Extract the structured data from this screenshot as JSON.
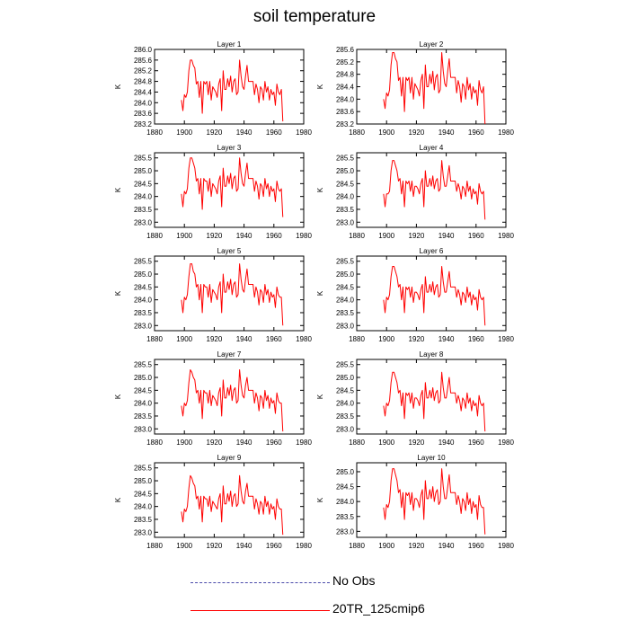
{
  "title": "soil temperature",
  "colors": {
    "model": "#ff0000",
    "obs": "#4a4aaa",
    "axis": "#000000"
  },
  "legend": [
    {
      "label": "No Obs",
      "style": "dashed",
      "color": "#4a4aaa"
    },
    {
      "label": "20TR_125cmip6",
      "style": "solid",
      "color": "#ff0000"
    }
  ],
  "chart_data": {
    "type": "line",
    "ylabel": "K",
    "xlim": [
      1880,
      1980
    ],
    "xticks": [
      1880,
      1900,
      1920,
      1940,
      1960,
      1980
    ],
    "years": [
      1898,
      1899,
      1900,
      1901,
      1902,
      1903,
      1904,
      1905,
      1906,
      1907,
      1908,
      1909,
      1910,
      1911,
      1912,
      1913,
      1914,
      1915,
      1916,
      1917,
      1918,
      1919,
      1920,
      1921,
      1922,
      1923,
      1924,
      1925,
      1926,
      1927,
      1928,
      1929,
      1930,
      1931,
      1932,
      1933,
      1934,
      1935,
      1936,
      1937,
      1938,
      1939,
      1940,
      1941,
      1942,
      1943,
      1944,
      1945,
      1946,
      1947,
      1948,
      1949,
      1950,
      1951,
      1952,
      1953,
      1954,
      1955,
      1956,
      1957,
      1958,
      1959,
      1960,
      1961,
      1962,
      1963,
      1964,
      1965,
      1966
    ],
    "panels": [
      {
        "title": "Layer 1",
        "ylim": [
          283.2,
          286.0
        ],
        "yticks": [
          "283.2",
          "283.6",
          "284.0",
          "284.4",
          "284.8",
          "285.2",
          "285.6",
          "286.0"
        ],
        "values": [
          284.1,
          283.7,
          284.3,
          284.2,
          284.4,
          285.2,
          285.6,
          285.6,
          285.4,
          285.3,
          284.7,
          284.8,
          284.2,
          284.8,
          283.6,
          284.8,
          284.7,
          284.8,
          284.3,
          284.8,
          284.1,
          284.6,
          284.5,
          284.4,
          284.2,
          284.7,
          284.9,
          283.7,
          285.2,
          284.5,
          284.5,
          284.9,
          284.6,
          285.0,
          284.4,
          284.8,
          284.9,
          284.3,
          284.4,
          285.6,
          285.0,
          284.6,
          284.5,
          285.0,
          285.4,
          284.8,
          284.8,
          284.8,
          284.8,
          284.3,
          284.7,
          284.5,
          284.0,
          284.6,
          284.5,
          284.1,
          284.8,
          284.4,
          284.6,
          284.1,
          284.5,
          284.3,
          284.4,
          283.9,
          284.7,
          284.4,
          284.3,
          284.5,
          283.3
        ]
      },
      {
        "title": "Layer 2",
        "ylim": [
          283.2,
          285.6
        ],
        "yticks": [
          "283.2",
          "283.6",
          "284.0",
          "284.4",
          "284.8",
          "285.2",
          "285.6"
        ],
        "values": [
          284.0,
          283.7,
          284.2,
          284.1,
          284.3,
          285.1,
          285.5,
          285.5,
          285.3,
          285.2,
          284.6,
          284.7,
          284.1,
          284.7,
          283.6,
          284.7,
          284.6,
          284.7,
          284.2,
          284.7,
          284.0,
          284.5,
          284.4,
          284.3,
          284.1,
          284.6,
          284.8,
          283.7,
          285.1,
          284.4,
          284.4,
          284.8,
          284.5,
          284.9,
          284.3,
          284.7,
          284.8,
          284.2,
          284.3,
          285.5,
          284.9,
          284.5,
          284.4,
          284.9,
          285.3,
          284.7,
          284.7,
          284.7,
          284.7,
          284.2,
          284.6,
          284.4,
          283.9,
          284.5,
          284.4,
          284.0,
          284.7,
          284.3,
          284.5,
          284.0,
          284.4,
          284.2,
          284.3,
          283.8,
          284.6,
          284.3,
          284.2,
          284.4,
          283.2
        ]
      },
      {
        "title": "Layer 3",
        "ylim": [
          282.8,
          285.7
        ],
        "yticks": [
          "283.0",
          "283.5",
          "284.0",
          "284.5",
          "285.0",
          "285.5"
        ],
        "values": [
          284.1,
          283.6,
          284.2,
          284.1,
          284.3,
          285.1,
          285.5,
          285.5,
          285.3,
          285.1,
          284.6,
          284.7,
          284.1,
          284.7,
          283.5,
          284.7,
          284.6,
          284.6,
          284.2,
          284.7,
          284.0,
          284.5,
          284.4,
          284.3,
          284.1,
          284.6,
          284.8,
          283.6,
          285.1,
          284.4,
          284.4,
          284.8,
          284.5,
          284.9,
          284.3,
          284.7,
          284.8,
          284.2,
          284.3,
          285.5,
          284.9,
          284.5,
          284.4,
          284.9,
          285.3,
          284.7,
          284.7,
          284.7,
          284.7,
          284.2,
          284.6,
          284.4,
          283.9,
          284.5,
          284.4,
          284.0,
          284.7,
          284.3,
          284.5,
          284.0,
          284.4,
          284.2,
          284.3,
          283.8,
          284.6,
          284.3,
          284.2,
          284.3,
          283.2
        ]
      },
      {
        "title": "Layer 4",
        "ylim": [
          282.8,
          285.7
        ],
        "yticks": [
          "283.0",
          "283.5",
          "284.0",
          "284.5",
          "285.0",
          "285.5"
        ],
        "values": [
          284.1,
          283.6,
          284.1,
          284.1,
          284.2,
          285.0,
          285.4,
          285.4,
          285.2,
          285.0,
          284.6,
          284.7,
          284.1,
          284.6,
          283.6,
          284.6,
          284.5,
          284.6,
          284.2,
          284.6,
          284.0,
          284.4,
          284.4,
          284.3,
          284.1,
          284.5,
          284.7,
          283.6,
          285.0,
          284.4,
          284.4,
          284.7,
          284.4,
          284.8,
          284.3,
          284.6,
          284.7,
          284.2,
          284.3,
          285.4,
          284.8,
          284.4,
          284.4,
          284.8,
          285.2,
          284.6,
          284.6,
          284.6,
          284.6,
          284.2,
          284.5,
          284.3,
          283.9,
          284.4,
          284.3,
          284.0,
          284.6,
          284.2,
          284.4,
          283.9,
          284.3,
          284.1,
          284.2,
          283.7,
          284.5,
          284.2,
          284.1,
          284.2,
          283.1
        ]
      },
      {
        "title": "Layer 5",
        "ylim": [
          282.8,
          285.7
        ],
        "yticks": [
          "283.0",
          "283.5",
          "284.0",
          "284.5",
          "285.0",
          "285.5"
        ],
        "values": [
          284.0,
          283.5,
          284.1,
          284.0,
          284.2,
          284.9,
          285.4,
          285.4,
          285.1,
          285.0,
          284.5,
          284.6,
          284.0,
          284.6,
          283.5,
          284.6,
          284.5,
          284.5,
          284.1,
          284.6,
          283.9,
          284.4,
          284.3,
          284.2,
          284.0,
          284.5,
          284.7,
          283.5,
          285.0,
          284.3,
          284.3,
          284.7,
          284.4,
          284.8,
          284.2,
          284.6,
          284.7,
          284.1,
          284.2,
          285.4,
          284.8,
          284.4,
          284.3,
          284.8,
          285.2,
          284.6,
          284.6,
          284.6,
          284.6,
          284.1,
          284.5,
          284.3,
          283.8,
          284.4,
          284.3,
          283.9,
          284.6,
          284.2,
          284.4,
          283.9,
          284.3,
          284.1,
          284.2,
          283.7,
          284.5,
          284.2,
          284.1,
          284.1,
          283.0
        ]
      },
      {
        "title": "Layer 6",
        "ylim": [
          282.8,
          285.7
        ],
        "yticks": [
          "283.0",
          "283.5",
          "284.0",
          "284.5",
          "285.0",
          "285.5"
        ],
        "values": [
          284.0,
          283.5,
          284.1,
          284.0,
          284.2,
          284.9,
          285.3,
          285.3,
          285.1,
          284.9,
          284.5,
          284.6,
          284.0,
          284.5,
          283.5,
          284.5,
          284.4,
          284.5,
          284.1,
          284.5,
          283.9,
          284.3,
          284.3,
          284.2,
          284.0,
          284.4,
          284.6,
          283.5,
          284.9,
          284.3,
          284.3,
          284.6,
          284.3,
          284.7,
          284.2,
          284.5,
          284.6,
          284.1,
          284.2,
          285.3,
          284.7,
          284.3,
          284.3,
          284.7,
          285.1,
          284.5,
          284.5,
          284.5,
          284.5,
          284.1,
          284.4,
          284.2,
          283.8,
          284.3,
          284.2,
          283.9,
          284.5,
          284.1,
          284.3,
          283.8,
          284.2,
          284.0,
          284.1,
          283.6,
          284.4,
          284.1,
          284.0,
          284.1,
          283.0
        ]
      },
      {
        "title": "Layer 7",
        "ylim": [
          282.8,
          285.7
        ],
        "yticks": [
          "283.0",
          "283.5",
          "284.0",
          "284.5",
          "285.0",
          "285.5"
        ],
        "values": [
          283.9,
          283.5,
          284.0,
          283.9,
          284.1,
          284.8,
          285.3,
          285.2,
          285.0,
          284.9,
          284.4,
          284.5,
          284.0,
          284.5,
          283.4,
          284.5,
          284.4,
          284.4,
          284.0,
          284.5,
          283.9,
          284.3,
          284.2,
          284.1,
          283.9,
          284.4,
          284.6,
          283.5,
          284.9,
          284.2,
          284.2,
          284.6,
          284.3,
          284.7,
          284.1,
          284.5,
          284.6,
          284.0,
          284.1,
          285.3,
          284.7,
          284.3,
          284.2,
          284.7,
          285.0,
          284.5,
          284.5,
          284.5,
          284.5,
          284.0,
          284.4,
          284.2,
          283.7,
          284.3,
          284.2,
          283.8,
          284.5,
          284.1,
          284.3,
          283.8,
          284.2,
          284.0,
          284.1,
          283.6,
          284.4,
          284.1,
          284.0,
          284.0,
          282.9
        ]
      },
      {
        "title": "Layer 8",
        "ylim": [
          282.8,
          285.7
        ],
        "yticks": [
          "283.0",
          "283.5",
          "284.0",
          "284.5",
          "285.0",
          "285.5"
        ],
        "values": [
          283.9,
          283.5,
          284.0,
          283.9,
          284.1,
          284.8,
          285.2,
          285.2,
          285.0,
          284.8,
          284.4,
          284.5,
          283.9,
          284.4,
          283.4,
          284.4,
          284.3,
          284.4,
          284.0,
          284.4,
          283.8,
          284.2,
          284.2,
          284.1,
          283.9,
          284.3,
          284.5,
          283.4,
          284.8,
          284.2,
          284.2,
          284.5,
          284.2,
          284.6,
          284.1,
          284.4,
          284.5,
          284.0,
          284.1,
          285.2,
          284.6,
          284.2,
          284.2,
          284.6,
          285.0,
          284.4,
          284.4,
          284.4,
          284.4,
          284.0,
          284.3,
          284.1,
          283.7,
          284.2,
          284.1,
          283.8,
          284.4,
          284.0,
          284.2,
          283.7,
          284.1,
          283.9,
          284.0,
          283.5,
          284.3,
          284.0,
          283.9,
          284.0,
          282.9
        ]
      },
      {
        "title": "Layer 9",
        "ylim": [
          282.8,
          285.7
        ],
        "yticks": [
          "283.0",
          "283.5",
          "284.0",
          "284.5",
          "285.0",
          "285.5"
        ],
        "values": [
          283.8,
          283.4,
          283.9,
          283.8,
          284.0,
          284.7,
          285.2,
          285.1,
          284.9,
          284.8,
          284.3,
          284.4,
          283.9,
          284.4,
          283.4,
          284.4,
          284.3,
          284.3,
          284.0,
          284.4,
          283.8,
          284.2,
          284.1,
          284.0,
          283.9,
          284.3,
          284.5,
          283.4,
          284.8,
          284.1,
          284.1,
          284.5,
          284.2,
          284.6,
          284.0,
          284.4,
          284.5,
          284.0,
          284.1,
          285.2,
          284.6,
          284.2,
          284.1,
          284.6,
          284.9,
          284.4,
          284.4,
          284.4,
          284.4,
          283.9,
          284.3,
          284.1,
          283.7,
          284.2,
          284.1,
          283.7,
          284.4,
          284.0,
          284.2,
          283.7,
          284.1,
          283.9,
          284.0,
          283.5,
          284.3,
          284.0,
          283.9,
          283.9,
          282.9
        ]
      },
      {
        "title": "Layer 10",
        "ylim": [
          282.8,
          285.3
        ],
        "yticks": [
          "283.0",
          "283.5",
          "284.0",
          "284.5",
          "285.0"
        ],
        "values": [
          283.8,
          283.4,
          283.9,
          283.8,
          284.0,
          284.7,
          285.1,
          285.1,
          284.9,
          284.7,
          284.3,
          284.4,
          283.8,
          284.3,
          283.4,
          284.3,
          284.2,
          284.3,
          283.9,
          284.3,
          283.7,
          284.1,
          284.1,
          284.0,
          283.8,
          284.2,
          284.4,
          283.4,
          284.7,
          284.1,
          284.1,
          284.4,
          284.1,
          284.5,
          284.0,
          284.3,
          284.4,
          283.9,
          284.0,
          285.1,
          284.5,
          284.1,
          284.1,
          284.5,
          284.9,
          284.3,
          284.3,
          284.3,
          284.3,
          283.9,
          284.2,
          284.0,
          283.6,
          284.1,
          284.0,
          283.7,
          284.3,
          283.9,
          284.1,
          283.6,
          284.0,
          283.8,
          283.9,
          283.4,
          284.2,
          283.9,
          283.8,
          283.8,
          282.9
        ]
      }
    ]
  }
}
